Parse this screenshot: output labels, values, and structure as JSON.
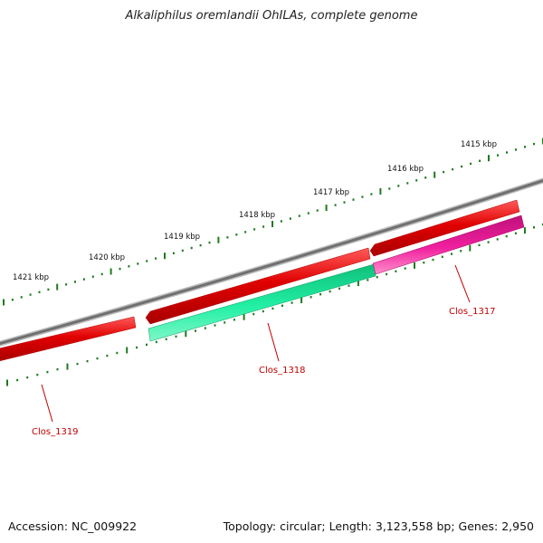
{
  "title": "Alkaliphilus oremlandii OhILAs, complete genome",
  "accession": "Accession: NC_009922",
  "summary": "Topology: circular; Length: 3,123,558 bp; Genes: 2,950",
  "colors": {
    "backbone": "#7a7a7a",
    "forward_gene": "#e00000",
    "reverse_gene_1318": "#19e89a",
    "reverse_gene_1317": "#e8189a",
    "tick": "#1e7a1e",
    "gene_label": "#c00000"
  },
  "scale_labels": [
    "1421 kbp",
    "1420 kbp",
    "1419 kbp",
    "1418 kbp",
    "1417 kbp",
    "1416 kbp",
    "1415 kbp"
  ],
  "genes": [
    {
      "name": "Clos_1319",
      "strand": "forward"
    },
    {
      "name": "Clos_1318",
      "strand": "reverse"
    },
    {
      "name": "Clos_1317",
      "strand": "reverse"
    }
  ]
}
